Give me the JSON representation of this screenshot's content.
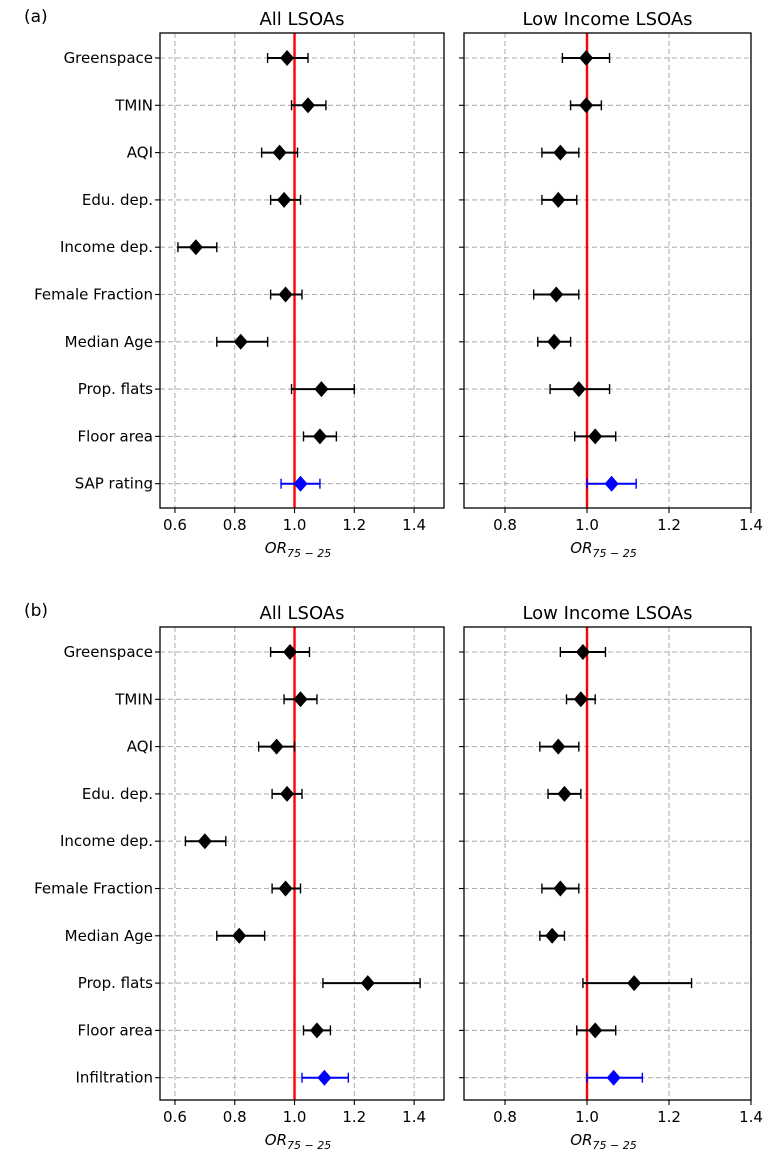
{
  "figure": {
    "colors": {
      "point": "#000000",
      "highlight": "#0000ff",
      "ref_line": "#ff0000",
      "grid": "#b0b0b0"
    }
  },
  "chart_data": [
    {
      "type": "scatter",
      "panel_label": "(a)",
      "title": "All LSOAs",
      "xlabel": "OR",
      "xlabel_sub": "75 − 25",
      "xlim": [
        0.55,
        1.5
      ],
      "xticks": [
        0.6,
        0.8,
        1.0,
        1.2,
        1.4
      ],
      "ref_line": 1.0,
      "grid": true,
      "categories": [
        "Greenspace",
        "TMIN",
        "AQI",
        "Edu. dep.",
        "Income dep.",
        "Female Fraction",
        "Median Age",
        "Prop. flats",
        "Floor area",
        "SAP rating"
      ],
      "points": [
        {
          "label": "Greenspace",
          "or": 0.975,
          "low": 0.91,
          "high": 1.045
        },
        {
          "label": "TMIN",
          "or": 1.045,
          "low": 0.99,
          "high": 1.105
        },
        {
          "label": "AQI",
          "or": 0.95,
          "low": 0.89,
          "high": 1.01
        },
        {
          "label": "Edu. dep.",
          "or": 0.965,
          "low": 0.92,
          "high": 1.02
        },
        {
          "label": "Income dep.",
          "or": 0.67,
          "low": 0.61,
          "high": 0.74
        },
        {
          "label": "Female Fraction",
          "or": 0.97,
          "low": 0.92,
          "high": 1.025
        },
        {
          "label": "Median Age",
          "or": 0.82,
          "low": 0.74,
          "high": 0.91
        },
        {
          "label": "Prop. flats",
          "or": 1.09,
          "low": 0.99,
          "high": 1.2
        },
        {
          "label": "Floor area",
          "or": 1.085,
          "low": 1.03,
          "high": 1.14
        },
        {
          "label": "SAP rating",
          "or": 1.02,
          "low": 0.955,
          "high": 1.085,
          "highlight": true
        }
      ]
    },
    {
      "type": "scatter",
      "title": "Low Income LSOAs",
      "xlabel": "OR",
      "xlabel_sub": "75 − 25",
      "xlim": [
        0.7,
        1.4
      ],
      "xticks": [
        0.8,
        1.0,
        1.2,
        1.4
      ],
      "ref_line": 1.0,
      "grid": true,
      "points": [
        {
          "label": "Greenspace",
          "or": 0.998,
          "low": 0.94,
          "high": 1.055
        },
        {
          "label": "TMIN",
          "or": 0.998,
          "low": 0.96,
          "high": 1.035
        },
        {
          "label": "AQI",
          "or": 0.935,
          "low": 0.89,
          "high": 0.98
        },
        {
          "label": "Edu. dep.",
          "or": 0.93,
          "low": 0.89,
          "high": 0.975
        },
        {
          "label": "Female Fraction",
          "or": 0.925,
          "low": 0.87,
          "high": 0.98
        },
        {
          "label": "Median Age",
          "or": 0.92,
          "low": 0.88,
          "high": 0.96
        },
        {
          "label": "Prop. flats",
          "or": 0.98,
          "low": 0.91,
          "high": 1.055
        },
        {
          "label": "Floor area",
          "or": 1.02,
          "low": 0.97,
          "high": 1.07
        },
        {
          "label": "SAP rating",
          "or": 1.06,
          "low": 1.0,
          "high": 1.12,
          "highlight": true
        }
      ]
    },
    {
      "type": "scatter",
      "panel_label": "(b)",
      "title": "All LSOAs",
      "xlabel": "OR",
      "xlabel_sub": "75 − 25",
      "xlim": [
        0.55,
        1.5
      ],
      "xticks": [
        0.6,
        0.8,
        1.0,
        1.2,
        1.4
      ],
      "ref_line": 1.0,
      "grid": true,
      "categories": [
        "Greenspace",
        "TMIN",
        "AQI",
        "Edu. dep.",
        "Income dep.",
        "Female Fraction",
        "Median Age",
        "Prop. flats",
        "Floor area",
        "Infiltration"
      ],
      "points": [
        {
          "label": "Greenspace",
          "or": 0.985,
          "low": 0.92,
          "high": 1.05
        },
        {
          "label": "TMIN",
          "or": 1.02,
          "low": 0.965,
          "high": 1.075
        },
        {
          "label": "AQI",
          "or": 0.94,
          "low": 0.88,
          "high": 1.0
        },
        {
          "label": "Edu. dep.",
          "or": 0.975,
          "low": 0.925,
          "high": 1.025
        },
        {
          "label": "Income dep.",
          "or": 0.7,
          "low": 0.635,
          "high": 0.77
        },
        {
          "label": "Female Fraction",
          "or": 0.97,
          "low": 0.925,
          "high": 1.02
        },
        {
          "label": "Median Age",
          "or": 0.815,
          "low": 0.74,
          "high": 0.9
        },
        {
          "label": "Prop. flats",
          "or": 1.245,
          "low": 1.095,
          "high": 1.42
        },
        {
          "label": "Floor area",
          "or": 1.075,
          "low": 1.03,
          "high": 1.12
        },
        {
          "label": "Infiltration",
          "or": 1.1,
          "low": 1.025,
          "high": 1.18,
          "highlight": true
        }
      ]
    },
    {
      "type": "scatter",
      "title": "Low Income LSOAs",
      "xlabel": "OR",
      "xlabel_sub": "75 − 25",
      "xlim": [
        0.7,
        1.4
      ],
      "xticks": [
        0.8,
        1.0,
        1.2,
        1.4
      ],
      "ref_line": 1.0,
      "grid": true,
      "points": [
        {
          "label": "Greenspace",
          "or": 0.99,
          "low": 0.935,
          "high": 1.045
        },
        {
          "label": "TMIN",
          "or": 0.985,
          "low": 0.95,
          "high": 1.02
        },
        {
          "label": "AQI",
          "or": 0.93,
          "low": 0.885,
          "high": 0.98
        },
        {
          "label": "Edu. dep.",
          "or": 0.945,
          "low": 0.905,
          "high": 0.985
        },
        {
          "label": "Female Fraction",
          "or": 0.935,
          "low": 0.89,
          "high": 0.98
        },
        {
          "label": "Median Age",
          "or": 0.915,
          "low": 0.885,
          "high": 0.945
        },
        {
          "label": "Prop. flats",
          "or": 1.115,
          "low": 0.99,
          "high": 1.255
        },
        {
          "label": "Floor area",
          "or": 1.02,
          "low": 0.975,
          "high": 1.07
        },
        {
          "label": "Infiltration",
          "or": 1.065,
          "low": 1.0,
          "high": 1.135,
          "highlight": true
        }
      ]
    }
  ]
}
